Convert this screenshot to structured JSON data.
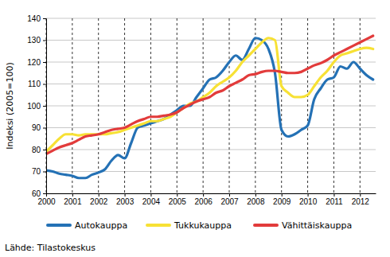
{
  "chart_data": {
    "type": "line",
    "y_label": "Indeksi (2005=100)",
    "source": "Lähde: Tilastokeskus",
    "x": [
      2000,
      2000.25,
      2000.5,
      2000.75,
      2001,
      2001.25,
      2001.5,
      2001.75,
      2002,
      2002.25,
      2002.5,
      2002.75,
      2003,
      2003.25,
      2003.5,
      2003.75,
      2004,
      2004.25,
      2004.5,
      2004.75,
      2005,
      2005.25,
      2005.5,
      2005.75,
      2006,
      2006.25,
      2006.5,
      2006.75,
      2007,
      2007.25,
      2007.5,
      2007.75,
      2008,
      2008.25,
      2008.5,
      2008.75,
      2009,
      2009.25,
      2009.5,
      2009.75,
      2010,
      2010.25,
      2010.5,
      2010.75,
      2011,
      2011.25,
      2011.5,
      2011.75,
      2012,
      2012.25,
      2012.5
    ],
    "series": [
      {
        "name": "Autokauppa",
        "color": "#2471b5",
        "values": [
          70.5,
          70,
          69,
          68.5,
          68,
          67,
          67,
          68.5,
          69.5,
          71,
          75,
          77.5,
          76,
          83,
          90,
          91,
          92,
          93,
          94,
          96,
          98,
          100,
          100,
          104,
          108,
          112,
          113,
          116,
          120,
          123,
          121,
          126,
          131,
          130,
          126,
          115,
          89,
          86,
          87,
          89,
          91,
          103,
          108,
          112,
          113,
          118,
          117,
          120,
          117,
          114,
          112
        ]
      },
      {
        "name": "Tukkukauppa",
        "color": "#f7e135",
        "values": [
          79,
          82,
          85,
          87,
          87,
          86.5,
          87,
          87,
          87,
          87,
          87.5,
          88,
          89,
          90,
          91,
          92,
          93,
          93,
          94,
          95,
          97,
          99,
          101,
          102,
          104,
          106,
          109,
          111,
          113,
          116,
          120,
          123,
          126,
          129,
          131,
          130,
          109,
          106,
          104,
          104,
          105,
          109,
          113,
          116,
          120,
          123,
          124,
          125,
          126,
          126.5,
          126
        ]
      },
      {
        "name": "Vähittäiskauppa",
        "color": "#e23b3b",
        "values": [
          78,
          79.5,
          81,
          82,
          83,
          84.5,
          86,
          86.5,
          87,
          88,
          89,
          89.5,
          90,
          91.5,
          93,
          94,
          95,
          95,
          95.5,
          96,
          97,
          99,
          100.5,
          102,
          103,
          104,
          106,
          107,
          109,
          110.5,
          112,
          114,
          114.5,
          115.5,
          116,
          116,
          115.5,
          115,
          115,
          115.5,
          117,
          118.5,
          119.5,
          121,
          123,
          124.5,
          126,
          127.5,
          129,
          130.5,
          132
        ]
      }
    ],
    "xlim": [
      2000,
      2012.6
    ],
    "xticks": [
      2000,
      2001,
      2002,
      2003,
      2004,
      2005,
      2006,
      2007,
      2008,
      2009,
      2010,
      2011,
      2012
    ],
    "ylim": [
      60,
      140
    ],
    "yticks": [
      60,
      70,
      80,
      90,
      100,
      110,
      120,
      130,
      140
    ],
    "grid": true,
    "legend": "bottom"
  }
}
